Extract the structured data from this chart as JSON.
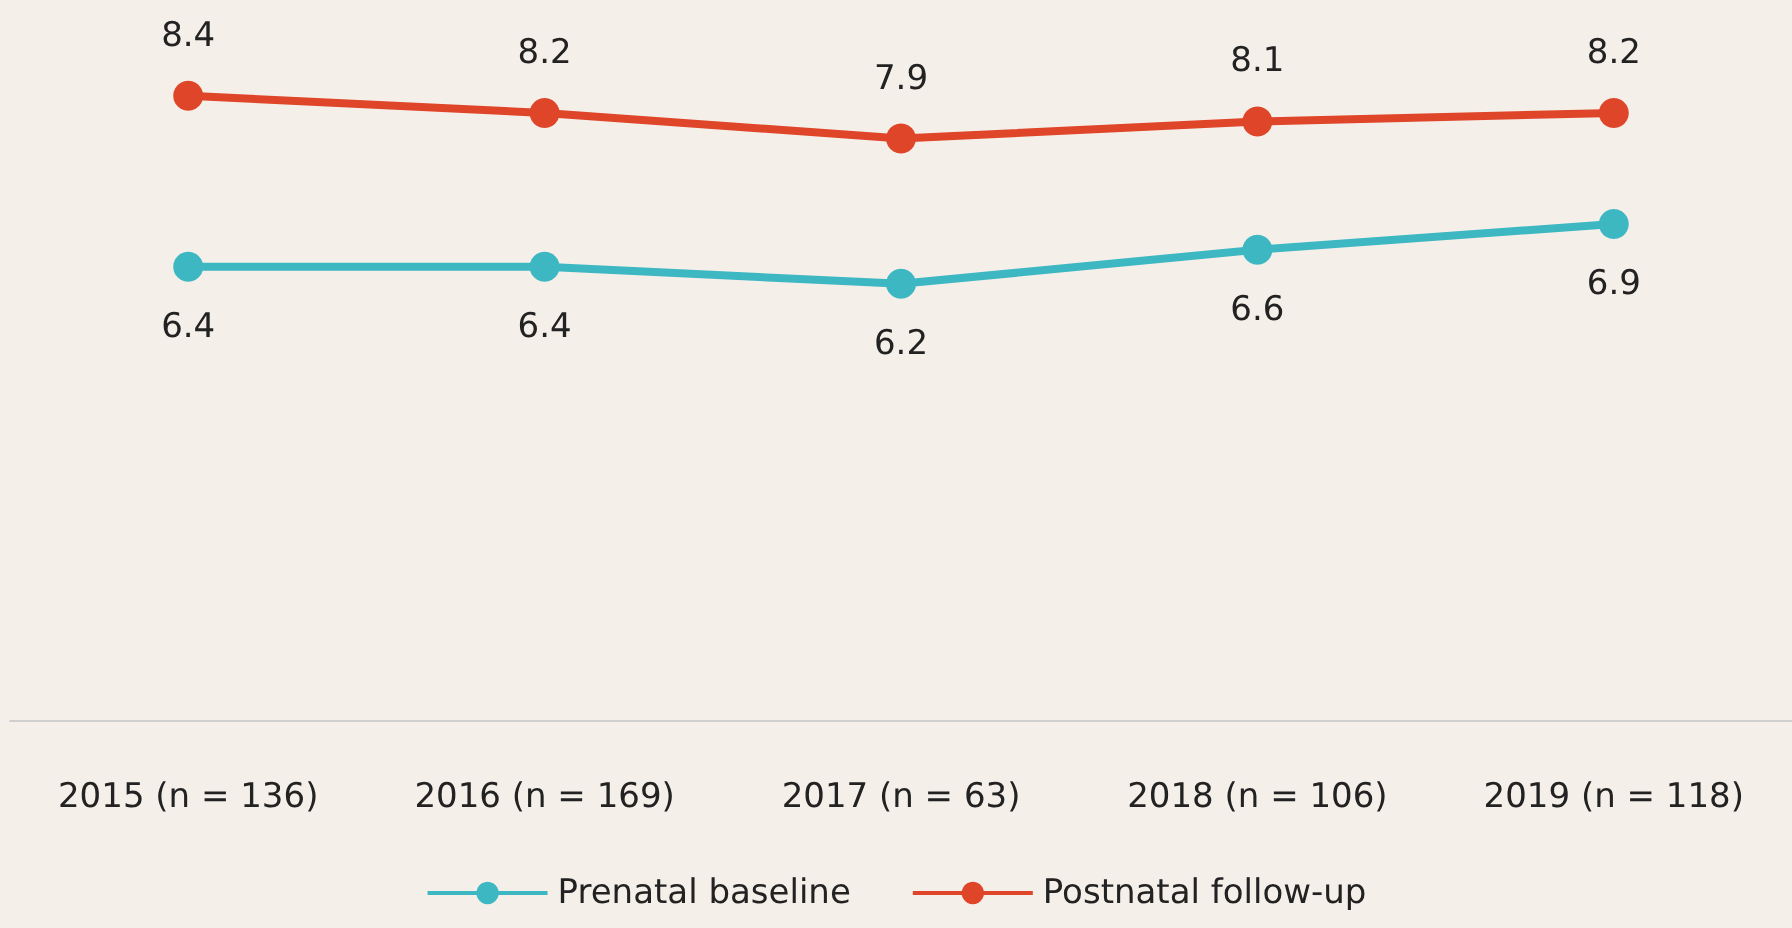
{
  "chart_data": {
    "type": "line",
    "categories": [
      "2015 (n = 136)",
      "2016 (n = 169)",
      "2017 (n = 63)",
      "2018 (n = 106)",
      "2019 (n = 118)"
    ],
    "series": [
      {
        "name": "Prenatal baseline",
        "color": "#3db8c3",
        "values": [
          6.4,
          6.4,
          6.2,
          6.6,
          6.9
        ]
      },
      {
        "name": "Postnatal follow-up",
        "color": "#df4528",
        "values": [
          8.4,
          8.2,
          7.9,
          8.1,
          8.2
        ]
      }
    ],
    "data_labels": true,
    "legend": "bottom",
    "grid": false,
    "tick_labels": "x",
    "marker": "circle",
    "line_style": "solid"
  }
}
